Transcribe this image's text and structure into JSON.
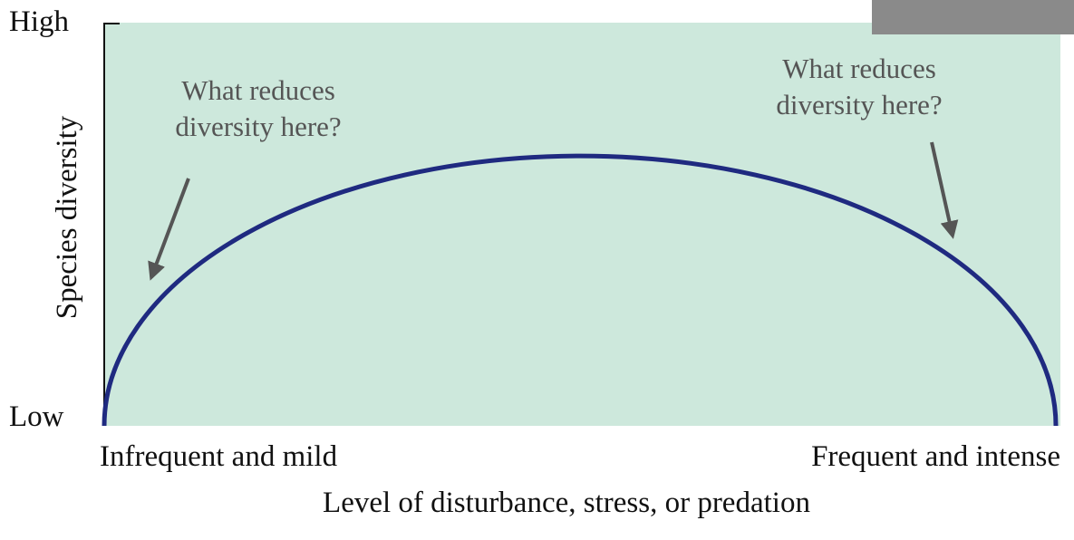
{
  "y_axis": {
    "title": "Species diversity",
    "high": "High",
    "low": "Low"
  },
  "x_axis": {
    "title": "Level of disturbance, stress, or predation",
    "left": "Infrequent and mild",
    "right": "Frequent and intense"
  },
  "annotations": [
    {
      "lines": [
        "What reduces",
        "diversity here?"
      ]
    },
    {
      "lines": [
        "What reduces",
        "diversity here?"
      ]
    }
  ]
}
